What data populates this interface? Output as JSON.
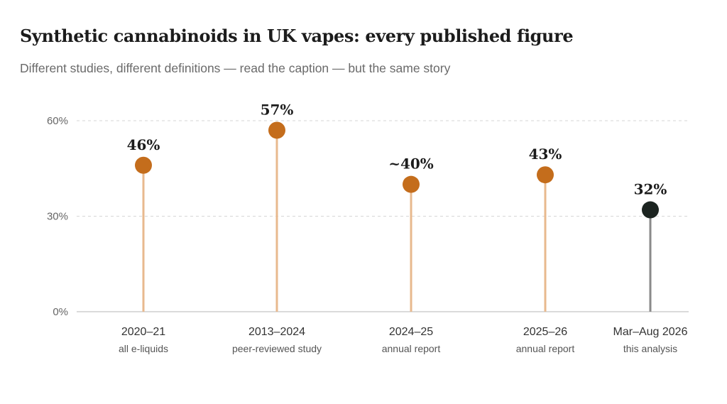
{
  "title": "Synthetic cannabinoids in UK vapes: every published figure",
  "subtitle": "Different studies, different definitions — read the caption — but the same story",
  "colors": {
    "highlight": "#c46d1c",
    "highlight_stem": "#e8b98e",
    "current": "#1c2420",
    "current_stem": "#8a8a8a",
    "grid": "#d6d6d6",
    "axis": "#cfcfcf"
  },
  "chart_data": {
    "type": "lollipop",
    "ylim": [
      0,
      60
    ],
    "yticks": [
      {
        "value": 0,
        "label": "0%"
      },
      {
        "value": 30,
        "label": "30%"
      },
      {
        "value": 60,
        "label": "60%"
      }
    ],
    "grid": "horizontal dashed",
    "points": [
      {
        "category": "2020–21",
        "sublabel": "all e-liquids",
        "value": 46,
        "label": "46%",
        "highlight": false
      },
      {
        "category": "2013–2024",
        "sublabel": "peer-reviewed study",
        "value": 57,
        "label": "57%",
        "highlight": false
      },
      {
        "category": "2024–25",
        "sublabel": "annual report",
        "value": 40,
        "label": "~40%",
        "highlight": false
      },
      {
        "category": "2025–26",
        "sublabel": "annual report",
        "value": 43,
        "label": "43%",
        "highlight": false
      },
      {
        "category": "Mar–Aug 2026",
        "sublabel": "this analysis",
        "value": 32,
        "label": "32%",
        "highlight": true
      }
    ]
  }
}
